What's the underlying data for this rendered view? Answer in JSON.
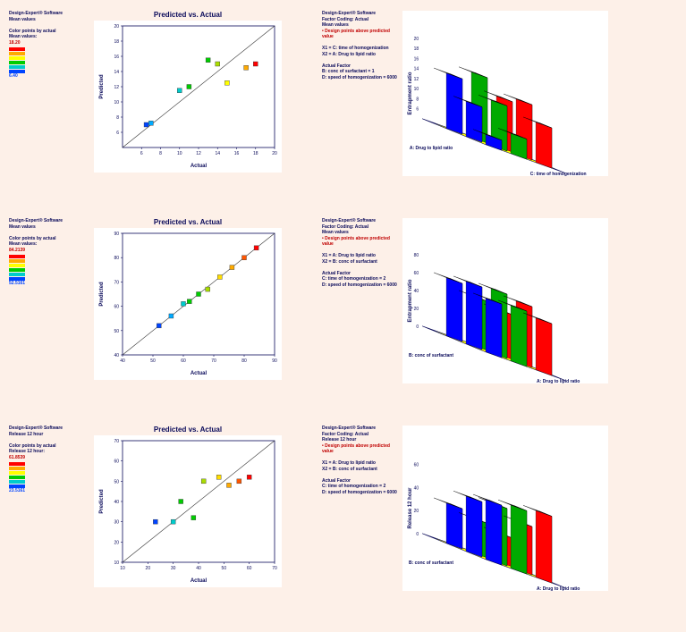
{
  "background": "#fdf0e8",
  "rows": [
    {
      "legend": {
        "title": "Design-Expert® Software",
        "sub1": "Mean values",
        "sub2": "Color points by actual",
        "sub3": "Mean values:",
        "low_label": "6.40",
        "high_label": "18.20",
        "gradient": [
          "#ff0000",
          "#ffaa00",
          "#ffff00",
          "#00cc00",
          "#00cccc",
          "#0044ff"
        ]
      },
      "scatter": {
        "title": "Predicted vs. Actual",
        "xlabel": "Actual",
        "ylabel": "Predicted",
        "xlim": [
          4,
          20
        ],
        "ylim": [
          4,
          20
        ],
        "xticks": [
          6,
          8,
          10,
          12,
          14,
          16,
          18,
          20
        ],
        "yticks": [
          6,
          8,
          10,
          12,
          14,
          16,
          18,
          20
        ],
        "points": [
          {
            "x": 6.5,
            "y": 7.0,
            "c": "#0044ff"
          },
          {
            "x": 7.0,
            "y": 7.2,
            "c": "#00aaff"
          },
          {
            "x": 10.0,
            "y": 11.5,
            "c": "#00cccc"
          },
          {
            "x": 11.0,
            "y": 12.0,
            "c": "#00cc00"
          },
          {
            "x": 13.0,
            "y": 15.5,
            "c": "#00cc00"
          },
          {
            "x": 14.0,
            "y": 15.0,
            "c": "#aadd00"
          },
          {
            "x": 15.0,
            "y": 12.5,
            "c": "#ffff00"
          },
          {
            "x": 17.0,
            "y": 14.5,
            "c": "#ffaa00"
          },
          {
            "x": 18.0,
            "y": 15.0,
            "c": "#ff0000"
          }
        ],
        "bg": "#ffffff",
        "axis": "#0a0a5a",
        "tick_fontsize": 5,
        "label_fontsize": 6,
        "title_fontsize": 8
      },
      "meta": {
        "lines": [
          "Design-Expert® Software",
          "Factor Coding: Actual",
          "Mean values",
          "",
          "X1 = C: time of homogenization",
          "X2 = A: Drug to lipid ratio",
          "",
          "Actual Factor",
          "B: conc of surfactant = 1",
          "D: speed of homogenization = 6000"
        ],
        "redline": "• Design points above predicted value"
      },
      "bar3d": {
        "zlabel": "Entrapment ratio",
        "xlabel1": "A: Drug to lipid ratio",
        "xlabel2": "C: time of homogenization",
        "zlim": [
          4,
          20
        ],
        "floor": "#ffff00",
        "bars": [
          {
            "row": 0,
            "col": 0,
            "h": 6,
            "c": "#0000ff"
          },
          {
            "row": 0,
            "col": 1,
            "h": 11,
            "c": "#0000ff"
          },
          {
            "row": 0,
            "col": 2,
            "h": 15,
            "c": "#0000ff"
          },
          {
            "row": 1,
            "col": 0,
            "h": 8,
            "c": "#00aa00"
          },
          {
            "row": 1,
            "col": 1,
            "h": 13,
            "c": "#00aa00"
          },
          {
            "row": 1,
            "col": 2,
            "h": 17,
            "c": "#00aa00"
          },
          {
            "row": 2,
            "col": 0,
            "h": 12,
            "c": "#ff0000"
          },
          {
            "row": 2,
            "col": 1,
            "h": 15,
            "c": "#ff0000"
          },
          {
            "row": 2,
            "col": 2,
            "h": 14,
            "c": "#ff0000"
          }
        ],
        "bg": "#ffffff",
        "axis": "#0a0a5a",
        "zticks": [
          6,
          8,
          10,
          12,
          14,
          16,
          18,
          20
        ]
      }
    },
    {
      "legend": {
        "title": "Design-Expert® Software",
        "sub1": "Mean values",
        "sub2": "Color points by actual",
        "sub3": "Mean values:",
        "low_label": "52.5161",
        "high_label": "84.2139",
        "gradient": [
          "#ff0000",
          "#ffaa00",
          "#ffff00",
          "#00cc00",
          "#00cccc",
          "#0044ff"
        ]
      },
      "scatter": {
        "title": "Predicted vs. Actual",
        "xlabel": "Actual",
        "ylabel": "Predicted",
        "xlim": [
          40,
          90
        ],
        "ylim": [
          40,
          90
        ],
        "xticks": [
          40,
          50,
          60,
          70,
          80,
          90
        ],
        "yticks": [
          40,
          50,
          60,
          70,
          80,
          90
        ],
        "points": [
          {
            "x": 52,
            "y": 52,
            "c": "#0044ff"
          },
          {
            "x": 56,
            "y": 56,
            "c": "#00aaff"
          },
          {
            "x": 60,
            "y": 61,
            "c": "#00cccc"
          },
          {
            "x": 62,
            "y": 62,
            "c": "#00cc00"
          },
          {
            "x": 65,
            "y": 65,
            "c": "#00cc00"
          },
          {
            "x": 68,
            "y": 67,
            "c": "#aadd00"
          },
          {
            "x": 72,
            "y": 72,
            "c": "#ffdd00"
          },
          {
            "x": 76,
            "y": 76,
            "c": "#ffaa00"
          },
          {
            "x": 80,
            "y": 80,
            "c": "#ff5500"
          },
          {
            "x": 84,
            "y": 84,
            "c": "#ff0000"
          }
        ],
        "bg": "#ffffff",
        "axis": "#0a0a5a",
        "tick_fontsize": 5,
        "label_fontsize": 6,
        "title_fontsize": 8
      },
      "meta": {
        "lines": [
          "Design-Expert® Software",
          "Factor Coding: Actual",
          "Mean values",
          "",
          "X1 = A: Drug to lipid ratio",
          "X2 = B: conc of surfactant",
          "",
          "Actual Factor",
          "C: time of homogenization = 2",
          "D: speed of homogenization = 6000"
        ],
        "redline": "• Design points above predicted value"
      },
      "bar3d": {
        "zlabel": "Entrapment ratio",
        "xlabel1": "B: conc of surfactant",
        "xlabel2": "A: Drug to lipid ratio",
        "zlim": [
          0,
          90
        ],
        "floor": "#ffff00",
        "bars": [
          {
            "row": 0,
            "col": 0,
            "h": 60,
            "c": "#0000ff"
          },
          {
            "row": 0,
            "col": 1,
            "h": 70,
            "c": "#0000ff"
          },
          {
            "row": 0,
            "col": 2,
            "h": 65,
            "c": "#0000ff"
          },
          {
            "row": 1,
            "col": 0,
            "h": 62,
            "c": "#00aa00"
          },
          {
            "row": 1,
            "col": 1,
            "h": 72,
            "c": "#00aa00"
          },
          {
            "row": 1,
            "col": 2,
            "h": 55,
            "c": "#00aa00"
          },
          {
            "row": 2,
            "col": 0,
            "h": 58,
            "c": "#ff0000"
          },
          {
            "row": 2,
            "col": 1,
            "h": 68,
            "c": "#ff0000"
          },
          {
            "row": 2,
            "col": 2,
            "h": 50,
            "c": "#ff0000"
          }
        ],
        "bg": "#ffffff",
        "axis": "#0a0a5a",
        "zticks": [
          0,
          20,
          40,
          60,
          80
        ]
      }
    },
    {
      "legend": {
        "title": "Design-Expert® Software",
        "sub1": "Release 12 hour",
        "sub2": "Color points by actual",
        "sub3": "Release 12 hour:",
        "low_label": "23.5161",
        "high_label": "61.8539",
        "gradient": [
          "#ff0000",
          "#ffaa00",
          "#ffff00",
          "#00cc00",
          "#00cccc",
          "#0044ff"
        ]
      },
      "scatter": {
        "title": "Predicted vs. Actual",
        "xlabel": "Actual",
        "ylabel": "Predicted",
        "xlim": [
          10,
          70
        ],
        "ylim": [
          10,
          70
        ],
        "xticks": [
          10,
          20,
          30,
          40,
          50,
          60,
          70
        ],
        "yticks": [
          10,
          20,
          30,
          40,
          50,
          60,
          70
        ],
        "points": [
          {
            "x": 23,
            "y": 30,
            "c": "#0044ff"
          },
          {
            "x": 30,
            "y": 30,
            "c": "#00cccc"
          },
          {
            "x": 33,
            "y": 40,
            "c": "#00cc00"
          },
          {
            "x": 38,
            "y": 32,
            "c": "#00cc00"
          },
          {
            "x": 42,
            "y": 50,
            "c": "#aadd00"
          },
          {
            "x": 48,
            "y": 52,
            "c": "#ffdd00"
          },
          {
            "x": 52,
            "y": 48,
            "c": "#ffaa00"
          },
          {
            "x": 56,
            "y": 50,
            "c": "#ff5500"
          },
          {
            "x": 60,
            "y": 52,
            "c": "#ff0000"
          }
        ],
        "bg": "#ffffff",
        "axis": "#0a0a5a",
        "tick_fontsize": 5,
        "label_fontsize": 6,
        "title_fontsize": 8
      },
      "meta": {
        "lines": [
          "Design-Expert® Software",
          "Factor Coding: Actual",
          "Release 12 hour",
          "",
          "X1 = A: Drug to lipid ratio",
          "X2 = B: conc of surfactant",
          "",
          "Actual Factor",
          "C: time of homogenization = 2",
          "D: speed of homogenization = 6000"
        ],
        "redline": "• Design points above predicted value"
      },
      "bar3d": {
        "zlabel": "Release 12 hour",
        "xlabel1": "B: conc of surfactant",
        "xlabel2": "A: Drug to lipid ratio",
        "zlim": [
          0,
          70
        ],
        "floor": "#ffff00",
        "bars": [
          {
            "row": 0,
            "col": 0,
            "h": 52,
            "c": "#0000ff"
          },
          {
            "row": 0,
            "col": 1,
            "h": 48,
            "c": "#0000ff"
          },
          {
            "row": 0,
            "col": 2,
            "h": 35,
            "c": "#0000ff"
          },
          {
            "row": 1,
            "col": 0,
            "h": 55,
            "c": "#00aa00"
          },
          {
            "row": 1,
            "col": 1,
            "h": 50,
            "c": "#00aa00"
          },
          {
            "row": 1,
            "col": 2,
            "h": 30,
            "c": "#00aa00"
          },
          {
            "row": 2,
            "col": 0,
            "h": 58,
            "c": "#ff0000"
          },
          {
            "row": 2,
            "col": 1,
            "h": 42,
            "c": "#ff0000"
          },
          {
            "row": 2,
            "col": 2,
            "h": 25,
            "c": "#ff0000"
          }
        ],
        "bg": "#ffffff",
        "axis": "#0a0a5a",
        "zticks": [
          0,
          20,
          40,
          60
        ]
      }
    }
  ]
}
